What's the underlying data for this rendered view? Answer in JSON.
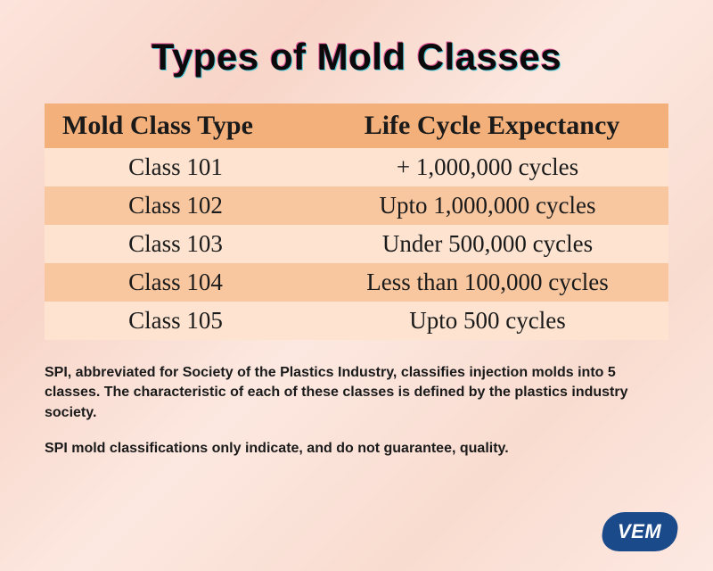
{
  "title": "Types of Mold Classes",
  "table": {
    "headers": {
      "col1": "Mold Class Type",
      "col2": "Life Cycle Expectancy"
    },
    "rows": [
      {
        "type": "Class 101",
        "expectancy": "+ 1,000,000 cycles"
      },
      {
        "type": "Class 102",
        "expectancy": "Upto 1,000,000 cycles"
      },
      {
        "type": "Class 103",
        "expectancy": "Under 500,000 cycles"
      },
      {
        "type": "Class 104",
        "expectancy": "Less than 100,000 cycles"
      },
      {
        "type": "Class 105",
        "expectancy": "Upto 500 cycles"
      }
    ],
    "header_bg": "#f4b07a",
    "row_odd_bg": "#fde3d0",
    "row_even_bg": "#f8c7a0",
    "header_fontsize": 30,
    "cell_fontsize": 27
  },
  "footnote": {
    "p1": "SPI, abbreviated for Society of the Plastics Industry, classifies injection molds into 5 classes. The characteristic of each of these classes is defined by the plastics industry society.",
    "p2": "SPI mold classifications only indicate, and do not guarantee, quality.",
    "fontsize": 16
  },
  "logo": {
    "text": "VEM",
    "bg_color": "#1b4a8a",
    "text_color": "#ffffff"
  },
  "colors": {
    "background": "#fce4dc",
    "title_color": "#0a0a0a",
    "title_shadow_pink": "#e85a9a",
    "title_shadow_cyan": "#4ac8d8",
    "text_color": "#1a1a1a"
  },
  "title_fontsize": 42
}
